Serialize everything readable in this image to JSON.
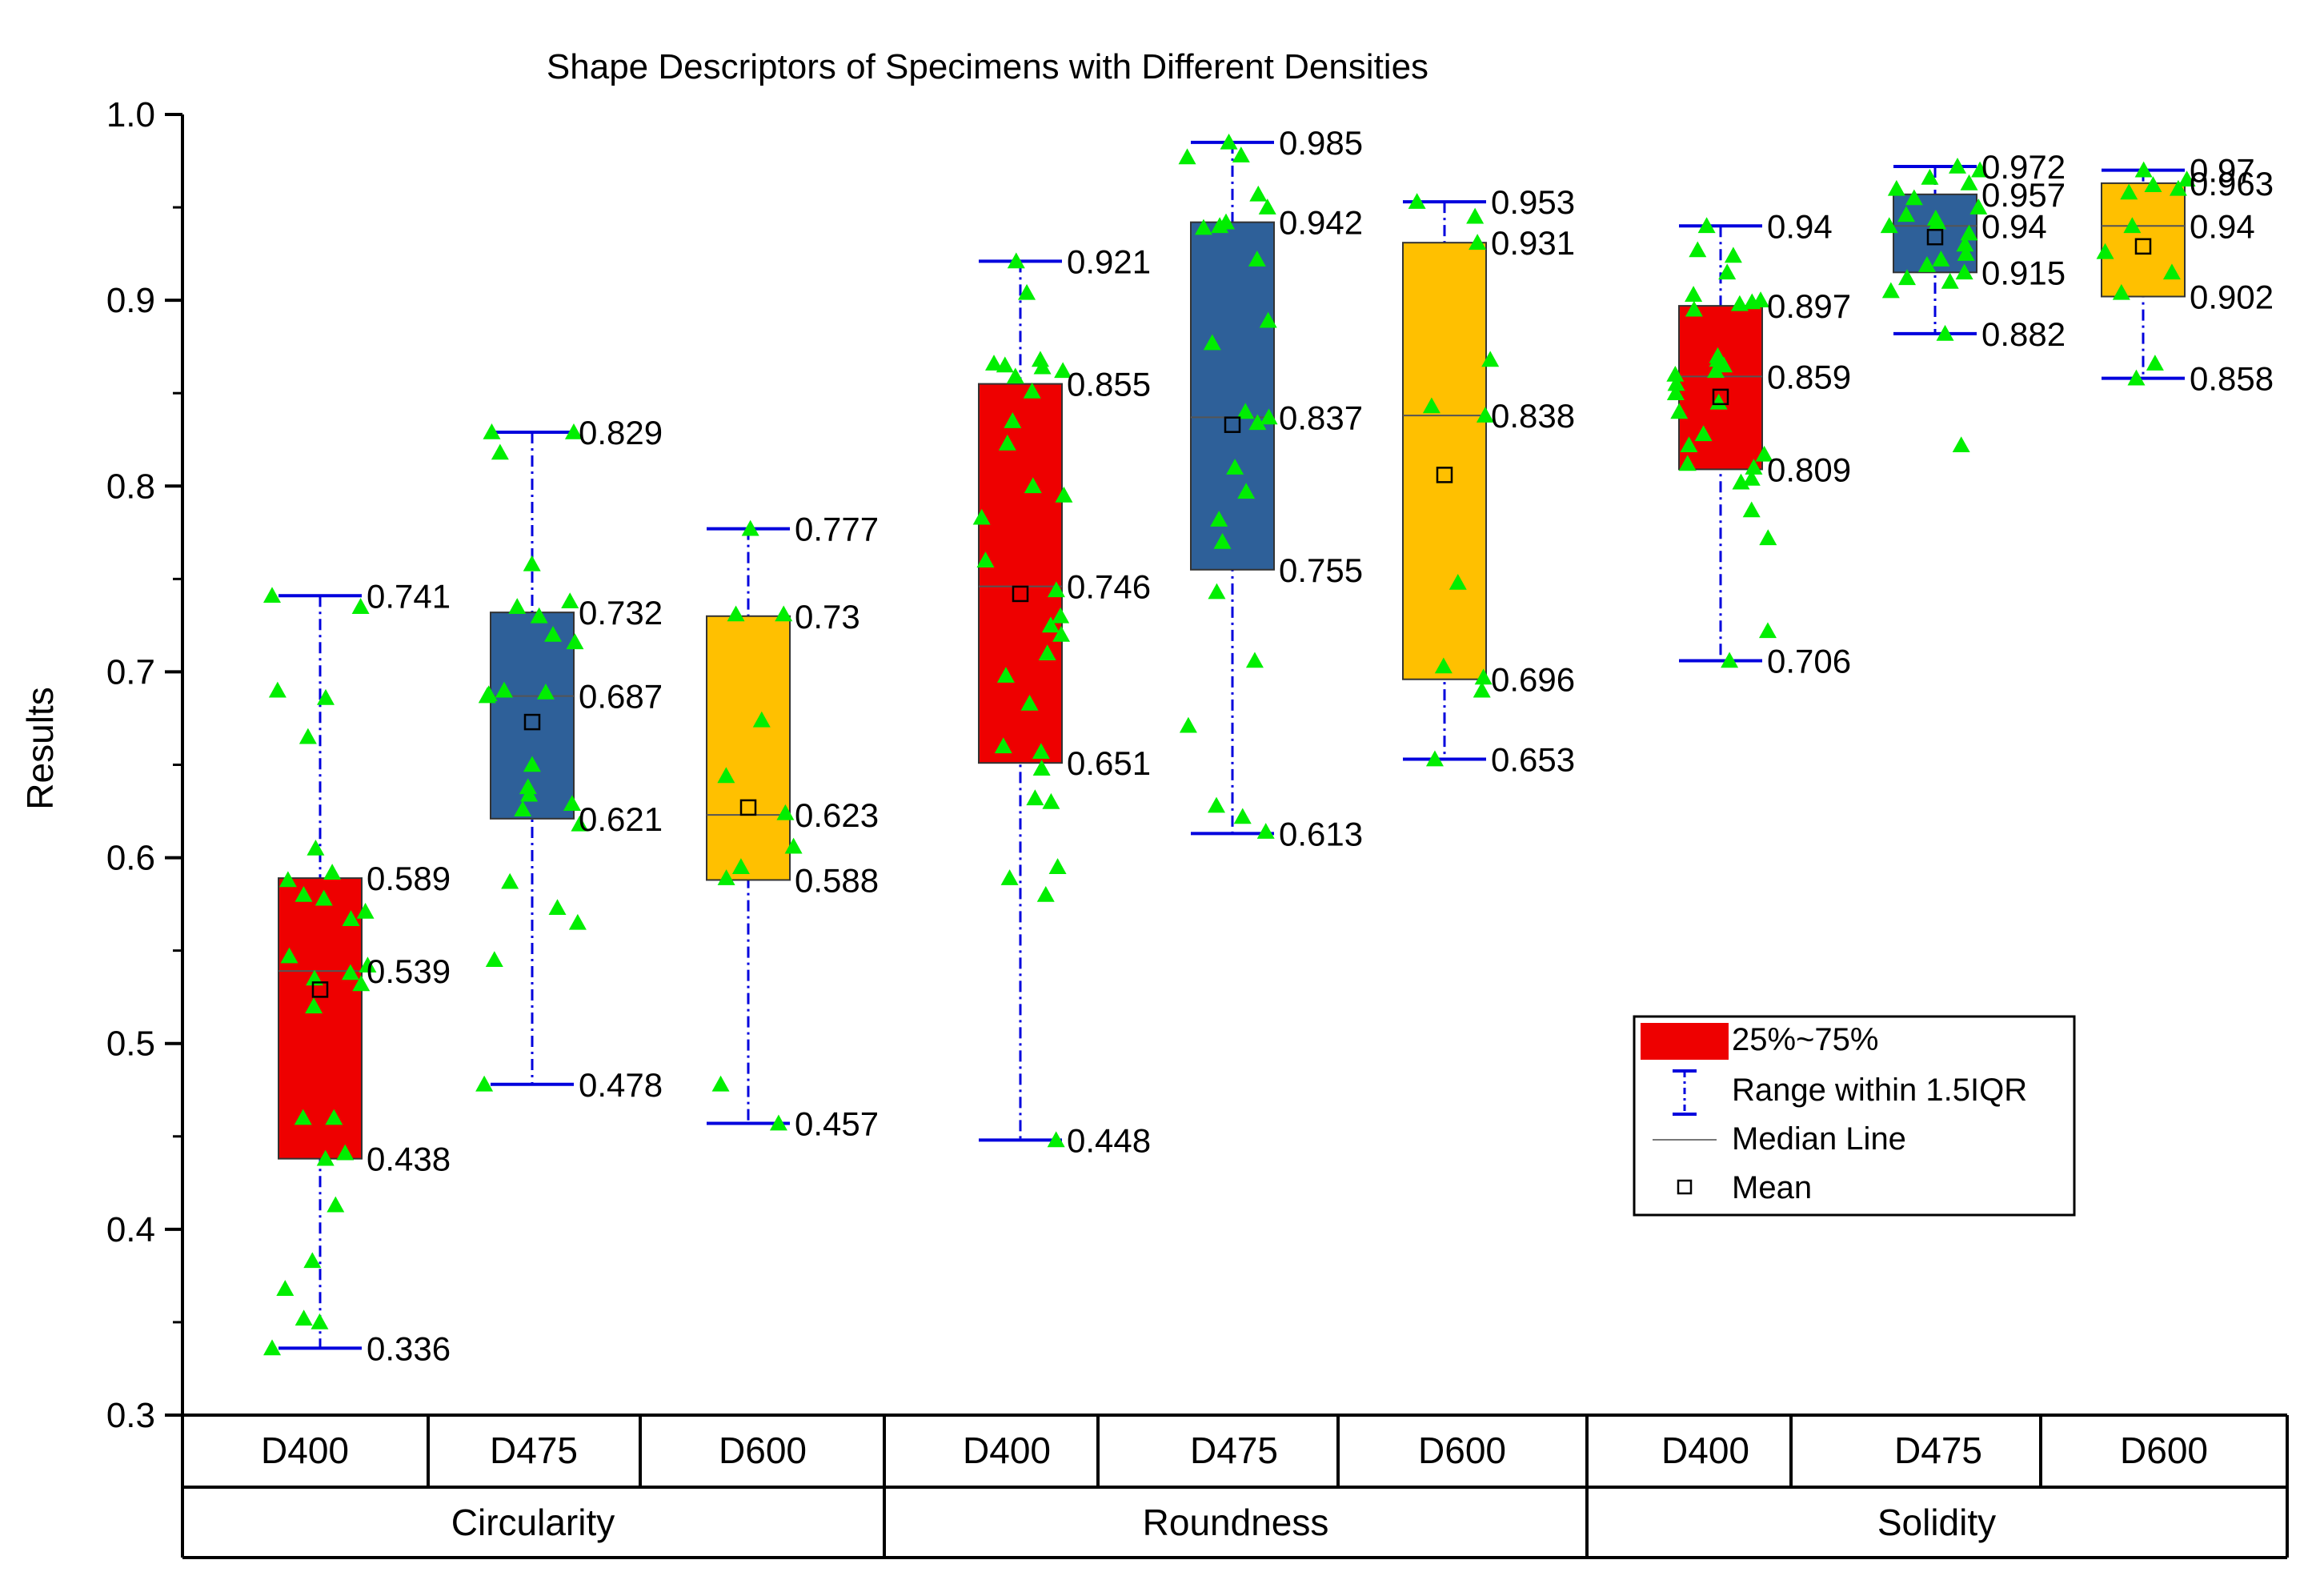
{
  "chart_data": {
    "type": "box",
    "title": "Shape Descriptors of Specimens with Different Densities",
    "ylabel": "Results",
    "ylim": [
      0.3,
      1.0
    ],
    "yticks": [
      "0.3",
      "0.4",
      "0.5",
      "0.6",
      "0.7",
      "0.8",
      "0.9",
      "1.0"
    ],
    "yticks_values": [
      0.3,
      0.4,
      0.5,
      0.6,
      0.7,
      0.8,
      0.9,
      1.0
    ],
    "groups": [
      "Circularity",
      "Roundness",
      "Solidity"
    ],
    "colors": {
      "D400": "#ee0000",
      "D475": "#2e6099",
      "D600": "#ffc000",
      "whisker": "#0000dd",
      "points": "#00ee00"
    },
    "legend": {
      "box": "25%~75%",
      "range": "Range within 1.5IQR",
      "median": "Median Line",
      "mean": "Mean"
    },
    "boxes": [
      {
        "group": "Circularity",
        "label": "D400",
        "min": 0.336,
        "q1": 0.438,
        "median": 0.539,
        "q3": 0.589,
        "max": 0.741,
        "mean": 0.529,
        "labels": {
          "min": "0.336",
          "q1": "0.438",
          "median": "0.539",
          "q3": "0.589",
          "max": "0.741"
        },
        "points": [
          0.741,
          0.735,
          0.69,
          0.686,
          0.665,
          0.605,
          0.592,
          0.588,
          0.58,
          0.578,
          0.571,
          0.567,
          0.547,
          0.542,
          0.538,
          0.535,
          0.532,
          0.52,
          0.46,
          0.46,
          0.441,
          0.438,
          0.413,
          0.383,
          0.368,
          0.352,
          0.35,
          0.336
        ]
      },
      {
        "group": "Circularity",
        "label": "D475",
        "min": 0.478,
        "q1": 0.621,
        "median": 0.687,
        "q3": 0.732,
        "max": 0.829,
        "mean": 0.673,
        "labels": {
          "min": "0.478",
          "q1": "0.621",
          "median": "0.687",
          "q3": "0.732",
          "max": "0.829"
        },
        "points": [
          0.829,
          0.829,
          0.818,
          0.758,
          0.738,
          0.735,
          0.73,
          0.72,
          0.716,
          0.69,
          0.689,
          0.688,
          0.687,
          0.65,
          0.638,
          0.634,
          0.629,
          0.626,
          0.618,
          0.587,
          0.573,
          0.565,
          0.545,
          0.478
        ]
      },
      {
        "group": "Circularity",
        "label": "D600",
        "min": 0.457,
        "q1": 0.588,
        "median": 0.623,
        "q3": 0.73,
        "max": 0.777,
        "mean": 0.627,
        "labels": {
          "min": "0.457",
          "q1": "0.588",
          "median": "0.623",
          "q3": "0.73",
          "max": "0.777"
        },
        "points": [
          0.777,
          0.731,
          0.731,
          0.674,
          0.644,
          0.624,
          0.606,
          0.595,
          0.589,
          0.478,
          0.457
        ]
      },
      {
        "group": "Roundness",
        "label": "D400",
        "min": 0.448,
        "q1": 0.651,
        "median": 0.746,
        "q3": 0.855,
        "max": 0.921,
        "mean": 0.742,
        "labels": {
          "min": "0.448",
          "q1": "0.651",
          "median": "0.746",
          "q3": "0.855",
          "max": "0.921"
        },
        "points": [
          0.921,
          0.904,
          0.868,
          0.866,
          0.865,
          0.864,
          0.862,
          0.859,
          0.851,
          0.835,
          0.823,
          0.8,
          0.795,
          0.783,
          0.76,
          0.744,
          0.73,
          0.725,
          0.72,
          0.71,
          0.698,
          0.683,
          0.66,
          0.657,
          0.648,
          0.632,
          0.63,
          0.595,
          0.589,
          0.58,
          0.448
        ]
      },
      {
        "group": "Roundness",
        "label": "D475",
        "min": 0.613,
        "q1": 0.755,
        "median": 0.837,
        "q3": 0.942,
        "max": 0.985,
        "mean": 0.833,
        "labels": {
          "min": "0.613",
          "q1": "0.755",
          "median": "0.837",
          "q3": "0.942",
          "max": "0.985"
        },
        "points": [
          0.985,
          0.978,
          0.977,
          0.957,
          0.95,
          0.942,
          0.94,
          0.939,
          0.922,
          0.889,
          0.877,
          0.84,
          0.837,
          0.834,
          0.81,
          0.797,
          0.782,
          0.77,
          0.743,
          0.706,
          0.671,
          0.628,
          0.622,
          0.614
        ]
      },
      {
        "group": "Roundness",
        "label": "D600",
        "min": 0.653,
        "q1": 0.696,
        "median": 0.838,
        "q3": 0.931,
        "max": 0.953,
        "mean": 0.806,
        "labels": {
          "min": "0.653",
          "q1": "0.696",
          "median": "0.838",
          "q3": "0.931",
          "max": "0.953"
        },
        "points": [
          0.953,
          0.945,
          0.931,
          0.868,
          0.843,
          0.838,
          0.748,
          0.703,
          0.697,
          0.69,
          0.653
        ]
      },
      {
        "group": "Solidity",
        "label": "D400",
        "min": 0.706,
        "q1": 0.809,
        "median": 0.859,
        "q3": 0.897,
        "max": 0.94,
        "mean": 0.848,
        "labels": {
          "min": "0.706",
          "q1": "0.809",
          "median": "0.859",
          "q3": "0.897",
          "max": "0.94"
        },
        "points": [
          0.94,
          0.927,
          0.924,
          0.915,
          0.903,
          0.9,
          0.899,
          0.898,
          0.895,
          0.87,
          0.868,
          0.865,
          0.862,
          0.86,
          0.855,
          0.85,
          0.845,
          0.84,
          0.828,
          0.822,
          0.817,
          0.812,
          0.81,
          0.804,
          0.802,
          0.787,
          0.772,
          0.722,
          0.706
        ]
      },
      {
        "group": "Solidity",
        "label": "D475",
        "min": 0.882,
        "q1": 0.915,
        "median": 0.94,
        "q3": 0.957,
        "max": 0.972,
        "mean": 0.934,
        "labels": {
          "min": "0.882",
          "q1": "0.915",
          "median": "0.94",
          "q3": "0.957",
          "max": "0.972"
        },
        "points": [
          0.972,
          0.97,
          0.966,
          0.963,
          0.96,
          0.955,
          0.95,
          0.946,
          0.944,
          0.942,
          0.94,
          0.936,
          0.93,
          0.925,
          0.922,
          0.919,
          0.915,
          0.912,
          0.91,
          0.905,
          0.882,
          0.822
        ]
      },
      {
        "group": "Solidity",
        "label": "D600",
        "min": 0.858,
        "q1": 0.902,
        "median": 0.94,
        "q3": 0.963,
        "max": 0.97,
        "mean": 0.929,
        "labels": {
          "min": "0.858",
          "q1": "0.902",
          "median": "0.94",
          "q3": "0.963",
          "max": "0.97"
        },
        "points": [
          0.97,
          0.965,
          0.962,
          0.96,
          0.958,
          0.94,
          0.926,
          0.915,
          0.904,
          0.866,
          0.858
        ]
      }
    ]
  }
}
